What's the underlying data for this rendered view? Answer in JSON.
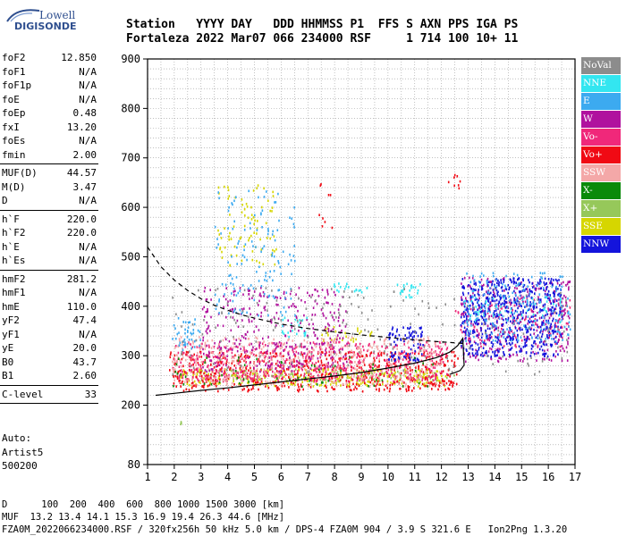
{
  "logo": {
    "line1": "Lowell",
    "line2": "DIGISONDE"
  },
  "header": {
    "row1": "Station   YYYY DAY   DDD HHMMSS P1  FFS S AXN PPS IGA PS",
    "row2": "Fortaleza 2022 Mar07 066 234000 RSF     1 714 100 10+ 11"
  },
  "params": {
    "groups": [
      [
        {
          "k": "foF2",
          "v": "12.850"
        },
        {
          "k": "foF1",
          "v": "N/A"
        },
        {
          "k": "foF1p",
          "v": "N/A"
        },
        {
          "k": "foE",
          "v": "N/A"
        },
        {
          "k": "foEp",
          "v": "0.48"
        },
        {
          "k": "fxI",
          "v": "13.20"
        },
        {
          "k": "foEs",
          "v": "N/A"
        },
        {
          "k": "fmin",
          "v": "2.00"
        }
      ],
      [
        {
          "k": "MUF(D)",
          "v": "44.57"
        },
        {
          "k": "M(D)",
          "v": "3.47"
        },
        {
          "k": "D",
          "v": "N/A"
        }
      ],
      [
        {
          "k": "h`F",
          "v": "220.0"
        },
        {
          "k": "h`F2",
          "v": "220.0"
        },
        {
          "k": "h`E",
          "v": "N/A"
        },
        {
          "k": "h`Es",
          "v": "N/A"
        }
      ],
      [
        {
          "k": "hmF2",
          "v": "281.2"
        },
        {
          "k": "hmF1",
          "v": "N/A"
        },
        {
          "k": "hmE",
          "v": "110.0"
        },
        {
          "k": "yF2",
          "v": "47.4"
        },
        {
          "k": "yF1",
          "v": "N/A"
        },
        {
          "k": "yE",
          "v": "20.0"
        },
        {
          "k": "B0",
          "v": "43.7"
        },
        {
          "k": "B1",
          "v": "2.60"
        }
      ],
      [
        {
          "k": "C-level",
          "v": "33"
        }
      ]
    ],
    "auto": [
      "Auto:",
      "Artist5",
      "500200"
    ]
  },
  "legend": [
    {
      "label": "NoVal",
      "color": "#8c8c8c"
    },
    {
      "label": "NNE",
      "color": "#33e6f0"
    },
    {
      "label": "E",
      "color": "#3caaf0"
    },
    {
      "label": "W",
      "color": "#b0129e"
    },
    {
      "label": "Vo-",
      "color": "#f0287a"
    },
    {
      "label": "Vo+",
      "color": "#f00a14"
    },
    {
      "label": "SSW",
      "color": "#f4a8a8"
    },
    {
      "label": "X-",
      "color": "#0a8a0a"
    },
    {
      "label": "X+",
      "color": "#96c85a"
    },
    {
      "label": "SSE",
      "color": "#d6d600"
    },
    {
      "label": "NNW",
      "color": "#1414dc"
    }
  ],
  "footer": {
    "row1": "D      100  200  400  600  800 1000 1500 3000 [km]",
    "row2": "MUF  13.2 13.4 14.1 15.3 16.9 19.4 26.3 44.6 [MHz]",
    "row3": "FZA0M_2022066234000.RSF / 320fx256h 50 kHz 5.0 km / DPS-4 FZA0M 904 / 3.9 S 321.6 E   Ion2Png 1.3.20"
  },
  "chart_data": {
    "type": "scatter",
    "xlim": [
      1,
      17
    ],
    "ylim": [
      80,
      900
    ],
    "xticks": [
      1,
      2,
      3,
      4,
      5,
      6,
      7,
      8,
      9,
      10,
      11,
      12,
      13,
      14,
      15,
      16,
      17
    ],
    "yticks": [
      80,
      200,
      300,
      400,
      500,
      600,
      700,
      800,
      900
    ],
    "grid": true,
    "legend_position": "right",
    "series": [
      {
        "name": "X+",
        "clusters": [
          [
            1.9,
            2.4,
            164,
            170,
            0.6
          ],
          [
            2.0,
            12.5,
            250,
            275,
            0.25
          ]
        ]
      },
      {
        "name": "SSE",
        "clusters": [
          [
            2.2,
            12.2,
            240,
            275,
            0.45
          ],
          [
            3.6,
            5.8,
            480,
            650,
            0.12
          ],
          [
            10.5,
            11.5,
            255,
            262,
            0.8
          ],
          [
            7.5,
            9.5,
            330,
            360,
            0.25
          ]
        ]
      },
      {
        "name": "Vo+",
        "clusters": [
          [
            1.8,
            12.6,
            230,
            310,
            0.4
          ],
          [
            7.4,
            7.9,
            560,
            660,
            0.1
          ],
          [
            12.2,
            12.7,
            640,
            670,
            0.3
          ]
        ]
      },
      {
        "name": "Vo-",
        "clusters": [
          [
            1.9,
            12.2,
            250,
            330,
            0.35
          ],
          [
            12.5,
            16.8,
            320,
            420,
            0.15
          ]
        ]
      },
      {
        "name": "SSW",
        "clusters": [
          [
            1.9,
            12.0,
            240,
            340,
            0.25
          ]
        ]
      },
      {
        "name": "W",
        "clusters": [
          [
            3.0,
            8.5,
            270,
            440,
            0.2
          ],
          [
            12.7,
            16.8,
            290,
            460,
            0.25
          ]
        ]
      },
      {
        "name": "NNW",
        "clusters": [
          [
            10.0,
            11.3,
            290,
            360,
            0.5
          ],
          [
            12.7,
            16.5,
            300,
            460,
            0.55
          ]
        ]
      },
      {
        "name": "E",
        "clusters": [
          [
            1.9,
            3.0,
            310,
            380,
            0.3
          ],
          [
            3.5,
            6.5,
            380,
            640,
            0.1
          ],
          [
            12.8,
            16.8,
            330,
            470,
            0.2
          ]
        ]
      },
      {
        "name": "NNE",
        "clusters": [
          [
            10.2,
            11.2,
            420,
            450,
            0.4
          ],
          [
            7.9,
            9.2,
            430,
            450,
            0.4
          ],
          [
            6.0,
            7.0,
            340,
            380,
            0.3
          ],
          [
            12.8,
            16.5,
            370,
            420,
            0.15
          ]
        ]
      },
      {
        "name": "NoVal",
        "clusters": [
          [
            1.9,
            16.8,
            260,
            440,
            0.04
          ]
        ]
      },
      {
        "name": "X-",
        "clusters": [
          [
            1.9,
            12.0,
            240,
            300,
            0.05
          ]
        ]
      }
    ],
    "curves": [
      {
        "name": "profile",
        "style": "solid",
        "x": [
          1.3,
          2,
          3,
          4,
          5,
          6,
          7,
          8,
          9,
          10,
          11,
          11.8,
          12.3,
          12.6,
          12.8,
          12.85,
          12.7,
          12.3
        ],
        "y": [
          220,
          224,
          230,
          235,
          241,
          247,
          253,
          259,
          266,
          275,
          285,
          296,
          307,
          320,
          335,
          281,
          270,
          262
        ]
      },
      {
        "name": "dashed",
        "style": "dashed",
        "x": [
          1.0,
          1.5,
          2,
          2.5,
          3,
          3.5,
          4,
          4.5,
          5,
          5.5,
          6,
          7,
          8,
          9,
          10,
          11,
          12,
          12.8
        ],
        "y": [
          520,
          480,
          453,
          432,
          415,
          402,
          392,
          383,
          376,
          370,
          364,
          355,
          348,
          342,
          337,
          332,
          328,
          325
        ]
      }
    ]
  }
}
